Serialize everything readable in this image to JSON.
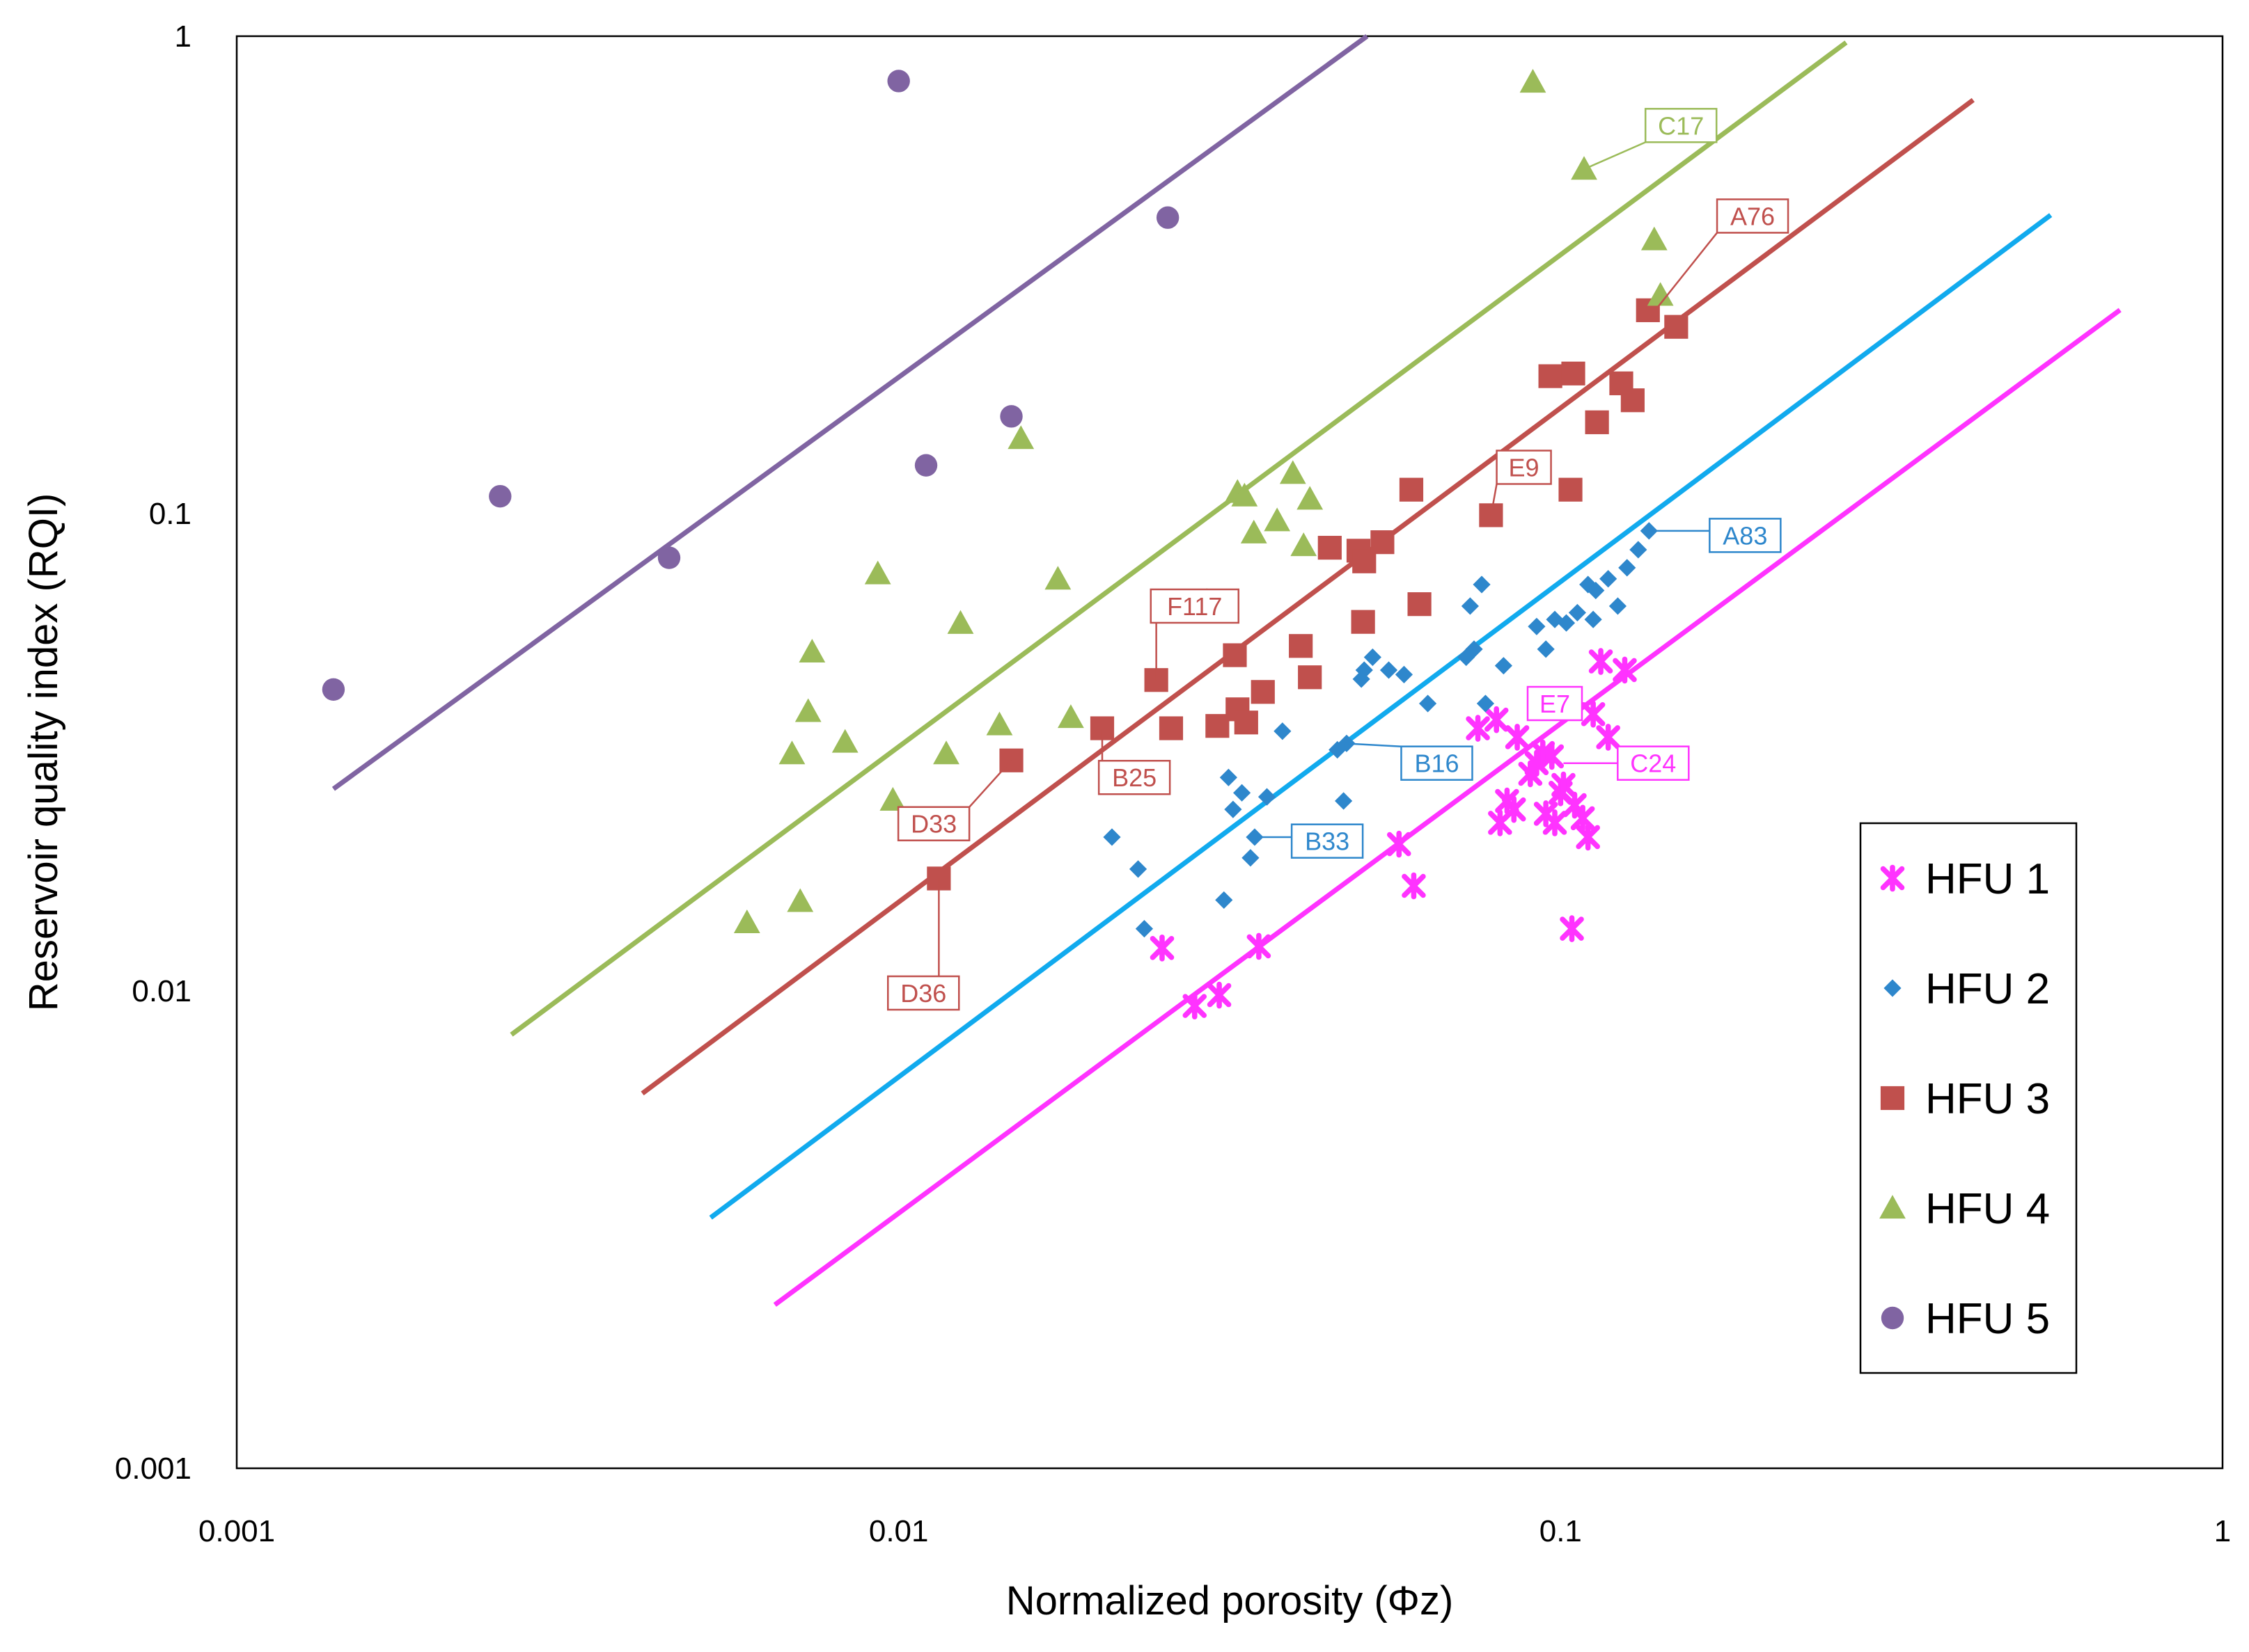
{
  "chart_data": {
    "type": "scatter",
    "title": "",
    "xlabel": "Normalized porosity (Φz)",
    "ylabel": "Reservoir quality index (RQI)",
    "xscale": "log",
    "yscale": "log",
    "xlim": [
      0.001,
      1
    ],
    "ylim": [
      0.001,
      1
    ],
    "x_ticks": [
      0.001,
      0.01,
      0.1,
      1
    ],
    "x_tick_labels": [
      "0.001",
      "0.01",
      "0.1",
      "1"
    ],
    "y_ticks": [
      0.001,
      0.01,
      0.1,
      1
    ],
    "y_tick_labels": [
      "0.001",
      "0.01",
      "0.1",
      "1"
    ],
    "grid": false,
    "legend_position": "bottom-right",
    "legend": [
      "HFU 1",
      "HFU 2",
      "HFU 3",
      "HFU 4",
      "HFU 5"
    ],
    "series": [
      {
        "name": "HFU 1",
        "marker": "x",
        "color": "#ff33ff",
        "points": [
          [
            0.025,
            0.0123
          ],
          [
            0.028,
            0.0093
          ],
          [
            0.0305,
            0.0098
          ],
          [
            0.035,
            0.0124
          ],
          [
            0.057,
            0.0203
          ],
          [
            0.06,
            0.0166
          ],
          [
            0.075,
            0.0355
          ],
          [
            0.08,
            0.037
          ],
          [
            0.081,
            0.0225
          ],
          [
            0.083,
            0.025
          ],
          [
            0.085,
            0.024
          ],
          [
            0.09,
            0.0285
          ],
          [
            0.092,
            0.03
          ],
          [
            0.094,
            0.0315
          ],
          [
            0.095,
            0.0235
          ],
          [
            0.097,
            0.031
          ],
          [
            0.098,
            0.0225
          ],
          [
            0.1,
            0.026
          ],
          [
            0.101,
            0.027
          ],
          [
            0.104,
            0.0135
          ],
          [
            0.105,
            0.0245
          ],
          [
            0.108,
            0.023
          ],
          [
            0.11,
            0.021
          ],
          [
            0.112,
            0.038
          ],
          [
            0.115,
            0.049
          ],
          [
            0.118,
            0.034
          ],
          [
            0.125,
            0.047
          ],
          [
            0.1,
            0.04
          ],
          [
            0.086,
            0.034
          ]
        ]
      },
      {
        "name": "HFU 2",
        "marker": "diamond",
        "color": "#2e87cc",
        "points": [
          [
            0.021,
            0.021
          ],
          [
            0.023,
            0.018
          ],
          [
            0.0235,
            0.0135
          ],
          [
            0.031,
            0.0155
          ],
          [
            0.0315,
            0.028
          ],
          [
            0.032,
            0.024
          ],
          [
            0.033,
            0.026
          ],
          [
            0.034,
            0.019
          ],
          [
            0.0345,
            0.021
          ],
          [
            0.036,
            0.0255
          ],
          [
            0.038,
            0.035
          ],
          [
            0.046,
            0.032
          ],
          [
            0.047,
            0.025
          ],
          [
            0.0475,
            0.033
          ],
          [
            0.05,
            0.045
          ],
          [
            0.0505,
            0.047
          ],
          [
            0.052,
            0.05
          ],
          [
            0.055,
            0.047
          ],
          [
            0.058,
            0.046
          ],
          [
            0.063,
            0.04
          ],
          [
            0.072,
            0.05
          ],
          [
            0.073,
            0.064
          ],
          [
            0.074,
            0.052
          ],
          [
            0.076,
            0.071
          ],
          [
            0.077,
            0.04
          ],
          [
            0.082,
            0.048
          ],
          [
            0.092,
            0.058
          ],
          [
            0.095,
            0.052
          ],
          [
            0.098,
            0.06
          ],
          [
            0.102,
            0.059
          ],
          [
            0.106,
            0.062
          ],
          [
            0.11,
            0.071
          ],
          [
            0.112,
            0.06
          ],
          [
            0.113,
            0.069
          ],
          [
            0.118,
            0.073
          ],
          [
            0.122,
            0.064
          ],
          [
            0.126,
            0.077
          ],
          [
            0.131,
            0.084
          ],
          [
            0.136,
            0.092
          ]
        ]
      },
      {
        "name": "HFU 3",
        "marker": "square",
        "color": "#c0504d",
        "points": [
          [
            0.0115,
            0.0172
          ],
          [
            0.0148,
            0.0304
          ],
          [
            0.0203,
            0.0355
          ],
          [
            0.0245,
            0.0448
          ],
          [
            0.0258,
            0.0355
          ],
          [
            0.0303,
            0.0359
          ],
          [
            0.0322,
            0.0505
          ],
          [
            0.0325,
            0.0389
          ],
          [
            0.0335,
            0.0365
          ],
          [
            0.0355,
            0.0423
          ],
          [
            0.0405,
            0.0528
          ],
          [
            0.0418,
            0.0454
          ],
          [
            0.0448,
            0.0848
          ],
          [
            0.0495,
            0.0836
          ],
          [
            0.0505,
            0.0794
          ],
          [
            0.0503,
            0.0593
          ],
          [
            0.0538,
            0.0871
          ],
          [
            0.0595,
            0.1122
          ],
          [
            0.0612,
            0.0646
          ],
          [
            0.0785,
            0.0992
          ],
          [
            0.0965,
            0.194
          ],
          [
            0.1035,
            0.1122
          ],
          [
            0.1045,
            0.1965
          ],
          [
            0.1135,
            0.1553
          ],
          [
            0.1235,
            0.1874
          ],
          [
            0.1285,
            0.1727
          ],
          [
            0.1355,
            0.2666
          ],
          [
            0.1495,
            0.2461
          ]
        ]
      },
      {
        "name": "HFU 4",
        "marker": "triangle",
        "color": "#9bbb59",
        "points": [
          [
            0.0059,
            0.0139
          ],
          [
            0.0069,
            0.0314
          ],
          [
            0.0071,
            0.0154
          ],
          [
            0.0073,
            0.0385
          ],
          [
            0.0074,
            0.0513
          ],
          [
            0.0083,
            0.0332
          ],
          [
            0.0093,
            0.0748
          ],
          [
            0.0098,
            0.0251
          ],
          [
            0.0118,
            0.0314
          ],
          [
            0.0124,
            0.0589
          ],
          [
            0.0142,
            0.0361
          ],
          [
            0.0153,
            0.1436
          ],
          [
            0.0174,
            0.0729
          ],
          [
            0.0182,
            0.0374
          ],
          [
            0.0292,
            0.0655
          ],
          [
            0.0325,
            0.1108
          ],
          [
            0.0333,
            0.1089
          ],
          [
            0.0344,
            0.0911
          ],
          [
            0.0373,
            0.0966
          ],
          [
            0.0394,
            0.1214
          ],
          [
            0.0409,
            0.0857
          ],
          [
            0.0418,
            0.1072
          ],
          [
            0.0908,
            0.8014
          ],
          [
            0.1085,
            0.5265
          ],
          [
            0.1385,
            0.3746
          ],
          [
            0.1415,
            0.2866
          ]
        ]
      },
      {
        "name": "HFU 5",
        "marker": "circle",
        "color": "#8064a2",
        "points": [
          [
            0.0014,
            0.0428
          ],
          [
            0.0025,
            0.1087
          ],
          [
            0.0045,
            0.0808
          ],
          [
            0.01,
            0.8054
          ],
          [
            0.011,
            0.1262
          ],
          [
            0.0148,
            0.1598
          ],
          [
            0.0255,
            0.4168
          ]
        ]
      }
    ],
    "trend_lines": [
      {
        "name": "HFU 1 line",
        "color": "#ff33ff",
        "x": [
          0.0065,
          0.7
        ],
        "y": [
          0.0022,
          0.267
        ]
      },
      {
        "name": "HFU 2 line",
        "color": "#11aaee",
        "x": [
          0.0052,
          0.55
        ],
        "y": [
          0.00335,
          0.422
        ]
      },
      {
        "name": "HFU 3 line",
        "color": "#c0504d",
        "x": [
          0.0041,
          0.42
        ],
        "y": [
          0.0061,
          0.735
        ]
      },
      {
        "name": "HFU 4 line",
        "color": "#9bbb59",
        "x": [
          0.0026,
          0.27
        ],
        "y": [
          0.0081,
          0.97
        ]
      },
      {
        "name": "HFU 5 line",
        "color": "#8064a2",
        "x": [
          0.0014,
          0.051
        ],
        "y": [
          0.0265,
          1.0
        ]
      }
    ],
    "annotations": [
      {
        "label": "C17",
        "color": "#9bbb59",
        "point": [
          0.108,
          0.525
        ],
        "box": [
          0.152,
          0.65
        ]
      },
      {
        "label": "A76",
        "color": "#c0504d",
        "point": [
          0.14,
          0.27
        ],
        "box": [
          0.195,
          0.42
        ]
      },
      {
        "label": "E9",
        "color": "#c0504d",
        "point": [
          0.0785,
          0.099
        ],
        "box": [
          0.088,
          0.125
        ]
      },
      {
        "label": "A83",
        "color": "#2e87cc",
        "point": [
          0.136,
          0.092
        ],
        "box": [
          0.19,
          0.09
        ]
      },
      {
        "label": "F117",
        "color": "#c0504d",
        "point": [
          0.0245,
          0.0448
        ],
        "box": [
          0.028,
          0.064
        ]
      },
      {
        "label": "E7",
        "color": "#ff33ff",
        "point": [
          0.09,
          0.04
        ],
        "box": [
          0.098,
          0.04
        ]
      },
      {
        "label": "B16",
        "color": "#2e87cc",
        "point": [
          0.047,
          0.033
        ],
        "box": [
          0.065,
          0.03
        ]
      },
      {
        "label": "C24",
        "color": "#ff33ff",
        "point": [
          0.101,
          0.03
        ],
        "box": [
          0.138,
          0.03
        ]
      },
      {
        "label": "D33",
        "color": "#c0504d",
        "point": [
          0.0148,
          0.0304
        ],
        "box": [
          0.0113,
          0.0224
        ]
      },
      {
        "label": "B25",
        "color": "#c0504d",
        "point": [
          0.0203,
          0.0355
        ],
        "box": [
          0.0227,
          0.028
        ]
      },
      {
        "label": "B33",
        "color": "#2e87cc",
        "point": [
          0.0345,
          0.021
        ],
        "box": [
          0.0444,
          0.0206
        ]
      },
      {
        "label": "D36",
        "color": "#c0504d",
        "point": [
          0.0115,
          0.0172
        ],
        "box": [
          0.0109,
          0.0099
        ]
      }
    ]
  }
}
